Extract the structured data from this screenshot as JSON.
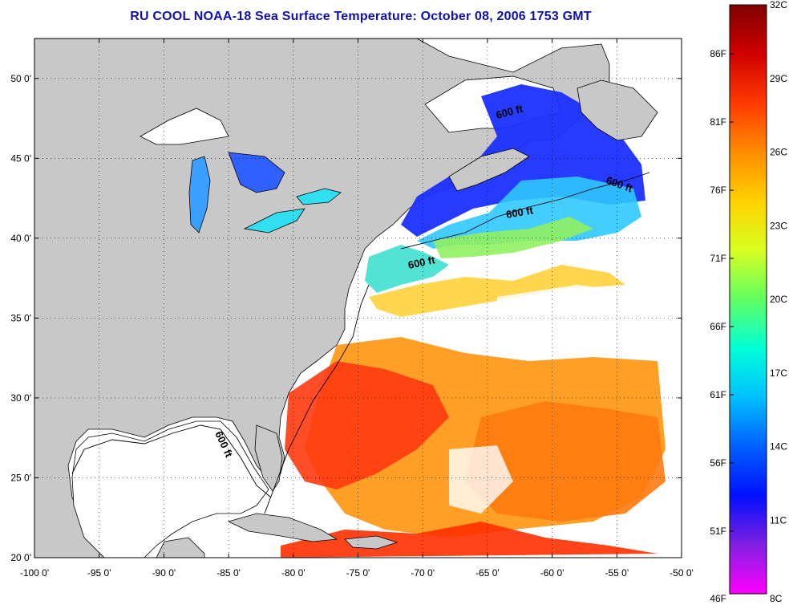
{
  "title": "RU COOL  NOAA-18  Sea Surface Temperature:  October 08, 2006 1753 GMT",
  "map": {
    "lon_range": [
      -100,
      -50
    ],
    "lat_range": [
      20,
      52.5
    ],
    "lon_ticks": [
      -100,
      -95,
      -90,
      -85,
      -80,
      -75,
      -70,
      -65,
      -60,
      -55,
      -50
    ],
    "lon_tick_labels": [
      "-100 0'",
      "-95 0'",
      "-90 0'",
      "-85 0'",
      "-80 0'",
      "-75 0'",
      "-70 0'",
      "-65 0'",
      "-60 0'",
      "-55 0'",
      "-50 0'"
    ],
    "lat_ticks": [
      20,
      25,
      30,
      35,
      40,
      45,
      50
    ],
    "lat_tick_labels": [
      "20 0'",
      "25 0'",
      "30 0'",
      "35 0'",
      "40 0'",
      "45 0'",
      "50 0'"
    ],
    "grid": "dotted",
    "land_color": "#c8c8c8",
    "no_data_color": "#ffffff",
    "contour_labels": [
      "600 ft",
      "600 ft",
      "600 ft",
      "600 ft",
      "600 ft"
    ]
  },
  "colorbar": {
    "celsius_labels": [
      "32C",
      "29C",
      "26C",
      "23C",
      "20C",
      "17C",
      "14C",
      "11C",
      "8C"
    ],
    "fahrenheit_labels": [
      "86F",
      "81F",
      "76F",
      "71F",
      "66F",
      "61F",
      "56F",
      "51F",
      "46F"
    ],
    "colors": [
      "#800000",
      "#d00000",
      "#ff3a00",
      "#ff8c00",
      "#ffd200",
      "#d8ff20",
      "#60ff60",
      "#00ffd8",
      "#00c0ff",
      "#0060ff",
      "#0010ff",
      "#8020e0",
      "#ff00ff"
    ]
  }
}
